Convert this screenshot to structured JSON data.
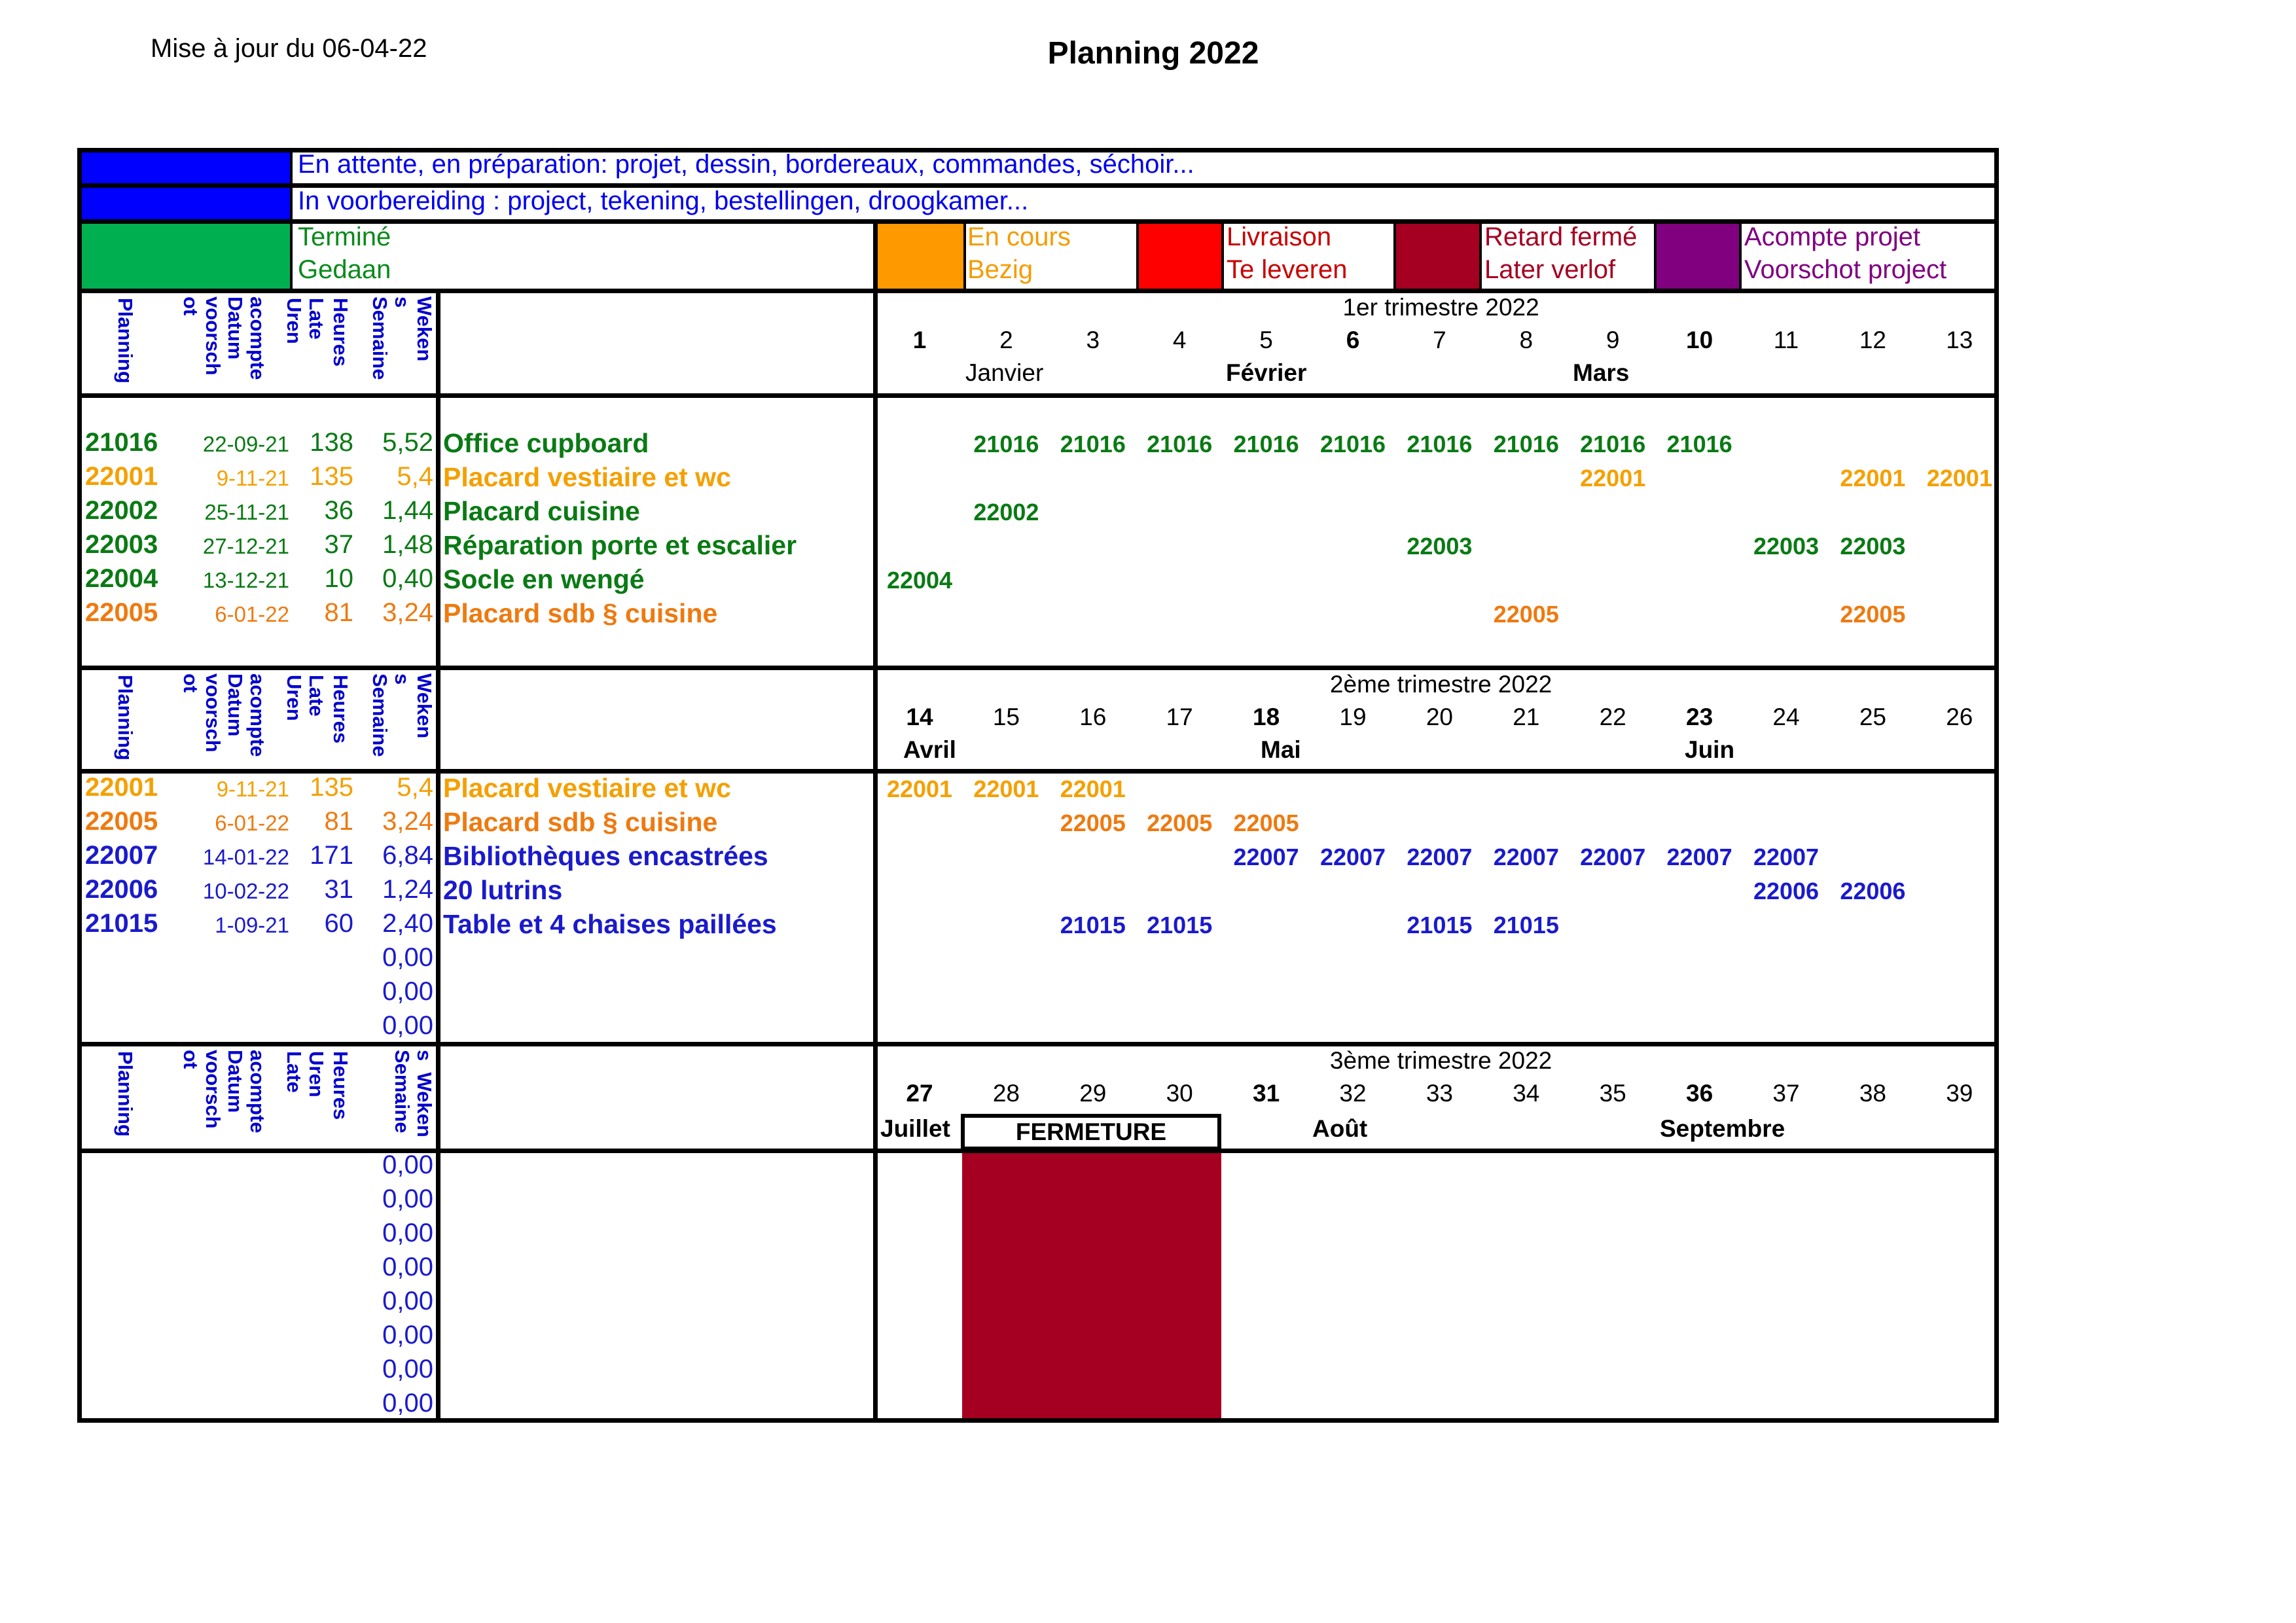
{
  "header": {
    "updated": "Mise à jour du 06-04-22",
    "title": "Planning 2022"
  },
  "legend": {
    "waiting_fr": "En attente, en préparation: projet, dessin, bordereaux, commandes, séchoir...",
    "waiting_nl": "In voorbereiding : project, tekening, bestellingen, droogkamer...",
    "done_fr": "Terminé",
    "done_nl": "Gedaan",
    "ongoing_fr": "En cours",
    "ongoing_nl": "Bezig",
    "delivery_fr": "Livraison",
    "delivery_nl": "Te leveren",
    "late_fr": "Retard fermé",
    "late_nl": "Later verlof",
    "deposit_fr": "Acompte projet",
    "deposit_nl": "Voorschot project",
    "colors": {
      "blue": "#0000ff",
      "green": "#00b050",
      "orange": "#ff9900",
      "red": "#ff0000",
      "darkred": "#a50021",
      "purple": "#800080"
    }
  },
  "col_headers": {
    "planning": "Planning",
    "deposit": "acompte\nDatum\nvoorsch\not",
    "late": "Late\nUren",
    "hours": "Heures",
    "weeks": "Weken\ns\nSemaine",
    "late3": "Uren\nLate",
    "weeks3": "s  Weken\nSemaine"
  },
  "quarters": [
    {
      "title": "1er trimestre 2022",
      "weeks": [
        "1",
        "2",
        "3",
        "4",
        "5",
        "6",
        "7",
        "8",
        "9",
        "10",
        "11",
        "12",
        "13"
      ],
      "bold_weeks": [
        "1",
        "6",
        "10"
      ],
      "months": [
        "Janvier",
        "Février",
        "Mars"
      ],
      "rows": [
        {
          "code": "21016",
          "date": "22-09-21",
          "hours": "138",
          "weeks": "5,52",
          "desc": "Office cupboard",
          "color": "green",
          "cells": [
            "",
            "21016",
            "21016",
            "21016",
            "21016",
            "21016",
            "21016",
            "21016",
            "21016",
            "21016",
            "",
            "",
            ""
          ]
        },
        {
          "code": "22001",
          "date": "9-11-21",
          "hours": "135",
          "weeks": "5,4",
          "desc": "Placard vestiaire et wc",
          "color": "orange",
          "cells": [
            "",
            "",
            "",
            "",
            "",
            "",
            "",
            "",
            "22001",
            "",
            "",
            "22001",
            "22001"
          ]
        },
        {
          "code": "22002",
          "date": "25-11-21",
          "hours": "36",
          "weeks": "1,44",
          "desc": "Placard cuisine",
          "color": "green",
          "cells": [
            "",
            "22002",
            "",
            "",
            "",
            "",
            "",
            "",
            "",
            "",
            "",
            "",
            ""
          ]
        },
        {
          "code": "22003",
          "date": "27-12-21",
          "hours": "37",
          "weeks": "1,48",
          "desc": "Réparation porte et escalier",
          "color": "green",
          "cells": [
            "",
            "",
            "",
            "",
            "",
            "",
            "22003",
            "",
            "",
            "",
            "22003",
            "22003",
            ""
          ]
        },
        {
          "code": "22004",
          "date": "13-12-21",
          "hours": "10",
          "weeks": "0,40",
          "desc": "Socle en wengé",
          "color": "green",
          "cells": [
            "22004",
            "",
            "",
            "",
            "",
            "",
            "",
            "",
            "",
            "",
            "",
            "",
            ""
          ]
        },
        {
          "code": "22005",
          "date": "6-01-22",
          "hours": "81",
          "weeks": "3,24",
          "desc": "Placard sdb § cuisine",
          "color": "orange2",
          "cells": [
            "",
            "",
            "",
            "",
            "",
            "",
            "",
            "22005",
            "",
            "",
            "",
            "22005",
            ""
          ]
        }
      ]
    },
    {
      "title": "2ème trimestre 2022",
      "weeks": [
        "14",
        "15",
        "16",
        "17",
        "18",
        "19",
        "20",
        "21",
        "22",
        "23",
        "24",
        "25",
        "26"
      ],
      "bold_weeks": [
        "14",
        "18",
        "23"
      ],
      "months": [
        "Avril",
        "Mai",
        "Juin"
      ],
      "rows": [
        {
          "code": "22001",
          "date": "9-11-21",
          "hours": "135",
          "weeks": "5,4",
          "desc": "Placard vestiaire et wc",
          "color": "orange",
          "cells": [
            "22001",
            "22001",
            "22001",
            "",
            "",
            "",
            "",
            "",
            "",
            "",
            "",
            "",
            ""
          ]
        },
        {
          "code": "22005",
          "date": "6-01-22",
          "hours": "81",
          "weeks": "3,24",
          "desc": "Placard sdb § cuisine",
          "color": "orange2",
          "cells": [
            "",
            "",
            "22005",
            "22005",
            "22005",
            "",
            "",
            "",
            "",
            "",
            "",
            "",
            ""
          ]
        },
        {
          "code": "22007",
          "date": "14-01-22",
          "hours": "171",
          "weeks": "6,84",
          "desc": "Bibliothèques encastrées",
          "color": "blue",
          "cells": [
            "",
            "",
            "",
            "",
            "22007",
            "22007",
            "22007",
            "22007",
            "22007",
            "22007",
            "22007",
            "",
            ""
          ]
        },
        {
          "code": "22006",
          "date": "10-02-22",
          "hours": "31",
          "weeks": "1,24",
          "desc": "20 lutrins",
          "color": "blue",
          "cells": [
            "",
            "",
            "",
            "",
            "",
            "",
            "",
            "",
            "",
            "",
            "22006",
            "22006",
            ""
          ]
        },
        {
          "code": "21015",
          "date": "1-09-21",
          "hours": "60",
          "weeks": "2,40",
          "desc": "Table et 4 chaises paillées",
          "color": "blue",
          "cells": [
            "",
            "",
            "21015",
            "21015",
            "",
            "",
            "21015",
            "21015",
            "",
            "",
            "",
            "",
            ""
          ]
        },
        {
          "code": "",
          "date": "",
          "hours": "",
          "weeks": "0,00",
          "desc": "",
          "color": "blue",
          "cells": []
        },
        {
          "code": "",
          "date": "",
          "hours": "",
          "weeks": "0,00",
          "desc": "",
          "color": "blue",
          "cells": []
        },
        {
          "code": "",
          "date": "",
          "hours": "",
          "weeks": "0,00",
          "desc": "",
          "color": "blue",
          "cells": []
        }
      ]
    },
    {
      "title": "3ème trimestre 2022",
      "weeks": [
        "27",
        "28",
        "29",
        "30",
        "31",
        "32",
        "33",
        "34",
        "35",
        "36",
        "37",
        "38",
        "39"
      ],
      "bold_weeks": [
        "27",
        "31",
        "36"
      ],
      "months": [
        "Juillet",
        "FERMETURE",
        "Août",
        "Septembre"
      ],
      "rows": [
        {
          "weeks": "0,00"
        },
        {
          "weeks": "0,00"
        },
        {
          "weeks": "0,00"
        },
        {
          "weeks": "0,00"
        },
        {
          "weeks": "0,00"
        },
        {
          "weeks": "0,00"
        },
        {
          "weeks": "0,00"
        },
        {
          "weeks": "0,00"
        }
      ]
    }
  ]
}
